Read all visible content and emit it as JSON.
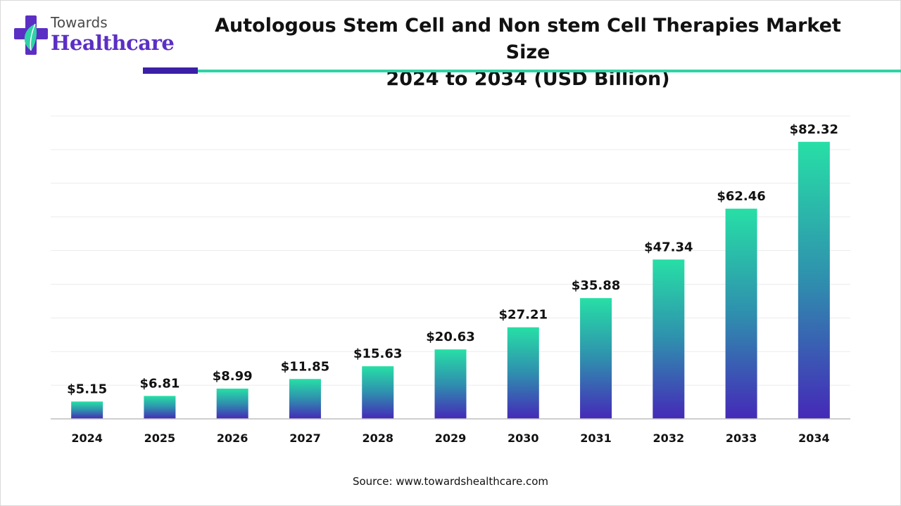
{
  "brand": {
    "line1": "Towards",
    "line2": "Healthcare",
    "colors": {
      "primary": "#5b2fc4",
      "accent": "#2fd3a6"
    }
  },
  "source_text": "Source: www.towardshealthcare.com",
  "chart_data": {
    "type": "bar",
    "title_line1": "Autologous Stem Cell and Non stem Cell Therapies Market Size",
    "title_line2": "2024 to 2034 (USD Billion)",
    "categories": [
      "2024",
      "2025",
      "2026",
      "2027",
      "2028",
      "2029",
      "2030",
      "2031",
      "2032",
      "2033",
      "2034"
    ],
    "values": [
      5.15,
      6.81,
      8.99,
      11.85,
      15.63,
      20.63,
      27.21,
      35.88,
      47.34,
      62.46,
      82.32
    ],
    "value_labels": [
      "$5.15",
      "$6.81",
      "$8.99",
      "$11.85",
      "$15.63",
      "$20.63",
      "$27.21",
      "$35.88",
      "$47.34",
      "$62.46",
      "$82.32"
    ],
    "xlabel": "",
    "ylabel": "",
    "ylim": [
      0,
      90
    ],
    "grid": true,
    "legend": "none",
    "bar_gradient": {
      "top": "#27dfa6",
      "mid": "#2f8fae",
      "bottom": "#4529b8"
    }
  }
}
